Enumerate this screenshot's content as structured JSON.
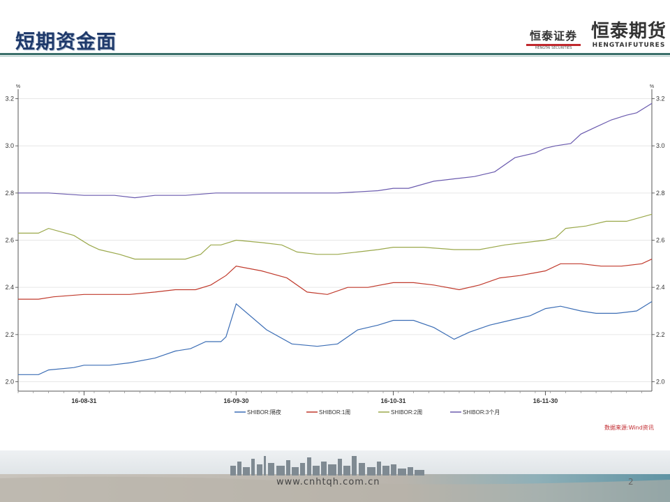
{
  "slide": {
    "title": "短期资金面",
    "logo_left": {
      "name": "恒泰证券",
      "en": "HENGTAI SECURITIES"
    },
    "logo_right": {
      "name": "恒泰期货",
      "en": "HENGTAIFUTURES"
    },
    "source_note": "数据来源:Wind资讯",
    "url": "www.cnhtqh.com.cn",
    "page_number": "2"
  },
  "chart_data": {
    "type": "line",
    "title": "",
    "xlabel": "",
    "ylabel": "%",
    "ylabel_right": "%",
    "ylim": [
      1.96,
      3.24
    ],
    "y_ticks": [
      "3.2",
      "3.0",
      "2.8",
      "2.6",
      "2.4",
      "2.2",
      "2.0"
    ],
    "x_ticks": [
      "16-08-31",
      "16-09-30",
      "16-10-31",
      "16-11-30"
    ],
    "x_range": [
      "2016-08-18",
      "2016-12-21"
    ],
    "grid": true,
    "legend_position": "bottom",
    "series": [
      {
        "name": "SHIBOR:隔夜",
        "color": "#3b6db5",
        "points": [
          [
            "2016-08-18",
            2.03
          ],
          [
            "2016-08-22",
            2.03
          ],
          [
            "2016-08-24",
            2.05
          ],
          [
            "2016-08-29",
            2.06
          ],
          [
            "2016-08-31",
            2.07
          ],
          [
            "2016-09-05",
            2.07
          ],
          [
            "2016-09-09",
            2.08
          ],
          [
            "2016-09-14",
            2.1
          ],
          [
            "2016-09-18",
            2.13
          ],
          [
            "2016-09-21",
            2.14
          ],
          [
            "2016-09-24",
            2.17
          ],
          [
            "2016-09-27",
            2.17
          ],
          [
            "2016-09-28",
            2.19
          ],
          [
            "2016-09-30",
            2.33
          ],
          [
            "2016-10-06",
            2.22
          ],
          [
            "2016-10-11",
            2.16
          ],
          [
            "2016-10-16",
            2.15
          ],
          [
            "2016-10-20",
            2.16
          ],
          [
            "2016-10-24",
            2.22
          ],
          [
            "2016-10-28",
            2.24
          ],
          [
            "2016-10-31",
            2.26
          ],
          [
            "2016-11-04",
            2.26
          ],
          [
            "2016-11-08",
            2.23
          ],
          [
            "2016-11-12",
            2.18
          ],
          [
            "2016-11-15",
            2.21
          ],
          [
            "2016-11-19",
            2.24
          ],
          [
            "2016-11-23",
            2.26
          ],
          [
            "2016-11-27",
            2.28
          ],
          [
            "2016-11-30",
            2.31
          ],
          [
            "2016-12-03",
            2.32
          ],
          [
            "2016-12-07",
            2.3
          ],
          [
            "2016-12-10",
            2.29
          ],
          [
            "2016-12-14",
            2.29
          ],
          [
            "2016-12-18",
            2.3
          ],
          [
            "2016-12-21",
            2.34
          ]
        ]
      },
      {
        "name": "SHIBOR:1周",
        "color": "#c0392b",
        "points": [
          [
            "2016-08-18",
            2.35
          ],
          [
            "2016-08-22",
            2.35
          ],
          [
            "2016-08-25",
            2.36
          ],
          [
            "2016-08-31",
            2.37
          ],
          [
            "2016-09-05",
            2.37
          ],
          [
            "2016-09-09",
            2.37
          ],
          [
            "2016-09-14",
            2.38
          ],
          [
            "2016-09-18",
            2.39
          ],
          [
            "2016-09-22",
            2.39
          ],
          [
            "2016-09-25",
            2.41
          ],
          [
            "2016-09-28",
            2.45
          ],
          [
            "2016-09-30",
            2.49
          ],
          [
            "2016-10-05",
            2.47
          ],
          [
            "2016-10-10",
            2.44
          ],
          [
            "2016-10-14",
            2.38
          ],
          [
            "2016-10-18",
            2.37
          ],
          [
            "2016-10-22",
            2.4
          ],
          [
            "2016-10-26",
            2.4
          ],
          [
            "2016-10-31",
            2.42
          ],
          [
            "2016-11-04",
            2.42
          ],
          [
            "2016-11-08",
            2.41
          ],
          [
            "2016-11-13",
            2.39
          ],
          [
            "2016-11-17",
            2.41
          ],
          [
            "2016-11-21",
            2.44
          ],
          [
            "2016-11-25",
            2.45
          ],
          [
            "2016-11-30",
            2.47
          ],
          [
            "2016-12-03",
            2.5
          ],
          [
            "2016-12-07",
            2.5
          ],
          [
            "2016-12-11",
            2.49
          ],
          [
            "2016-12-15",
            2.49
          ],
          [
            "2016-12-19",
            2.5
          ],
          [
            "2016-12-21",
            2.52
          ]
        ]
      },
      {
        "name": "SHIBOR:2周",
        "color": "#9aa84a",
        "points": [
          [
            "2016-08-18",
            2.63
          ],
          [
            "2016-08-22",
            2.63
          ],
          [
            "2016-08-24",
            2.65
          ],
          [
            "2016-08-29",
            2.62
          ],
          [
            "2016-09-01",
            2.58
          ],
          [
            "2016-09-03",
            2.56
          ],
          [
            "2016-09-07",
            2.54
          ],
          [
            "2016-09-10",
            2.52
          ],
          [
            "2016-09-15",
            2.52
          ],
          [
            "2016-09-20",
            2.52
          ],
          [
            "2016-09-23",
            2.54
          ],
          [
            "2016-09-25",
            2.58
          ],
          [
            "2016-09-27",
            2.58
          ],
          [
            "2016-09-30",
            2.6
          ],
          [
            "2016-10-05",
            2.59
          ],
          [
            "2016-10-09",
            2.58
          ],
          [
            "2016-10-12",
            2.55
          ],
          [
            "2016-10-16",
            2.54
          ],
          [
            "2016-10-20",
            2.54
          ],
          [
            "2016-10-24",
            2.55
          ],
          [
            "2016-10-28",
            2.56
          ],
          [
            "2016-10-31",
            2.57
          ],
          [
            "2016-11-06",
            2.57
          ],
          [
            "2016-11-12",
            2.56
          ],
          [
            "2016-11-17",
            2.56
          ],
          [
            "2016-11-22",
            2.58
          ],
          [
            "2016-11-26",
            2.59
          ],
          [
            "2016-11-30",
            2.6
          ],
          [
            "2016-12-02",
            2.61
          ],
          [
            "2016-12-04",
            2.65
          ],
          [
            "2016-12-08",
            2.66
          ],
          [
            "2016-12-12",
            2.68
          ],
          [
            "2016-12-16",
            2.68
          ],
          [
            "2016-12-21",
            2.71
          ]
        ]
      },
      {
        "name": "SHIBOR:3个月",
        "color": "#6a5aae",
        "points": [
          [
            "2016-08-18",
            2.8
          ],
          [
            "2016-08-24",
            2.8
          ],
          [
            "2016-08-31",
            2.79
          ],
          [
            "2016-09-06",
            2.79
          ],
          [
            "2016-09-10",
            2.78
          ],
          [
            "2016-09-14",
            2.79
          ],
          [
            "2016-09-20",
            2.79
          ],
          [
            "2016-09-26",
            2.8
          ],
          [
            "2016-09-30",
            2.8
          ],
          [
            "2016-10-10",
            2.8
          ],
          [
            "2016-10-20",
            2.8
          ],
          [
            "2016-10-28",
            2.81
          ],
          [
            "2016-10-31",
            2.82
          ],
          [
            "2016-11-03",
            2.82
          ],
          [
            "2016-11-08",
            2.85
          ],
          [
            "2016-11-12",
            2.86
          ],
          [
            "2016-11-16",
            2.87
          ],
          [
            "2016-11-20",
            2.89
          ],
          [
            "2016-11-24",
            2.95
          ],
          [
            "2016-11-28",
            2.97
          ],
          [
            "2016-11-30",
            2.99
          ],
          [
            "2016-12-02",
            3.0
          ],
          [
            "2016-12-05",
            3.01
          ],
          [
            "2016-12-07",
            3.05
          ],
          [
            "2016-12-10",
            3.08
          ],
          [
            "2016-12-13",
            3.11
          ],
          [
            "2016-12-16",
            3.13
          ],
          [
            "2016-12-18",
            3.14
          ],
          [
            "2016-12-21",
            3.18
          ]
        ]
      }
    ]
  }
}
